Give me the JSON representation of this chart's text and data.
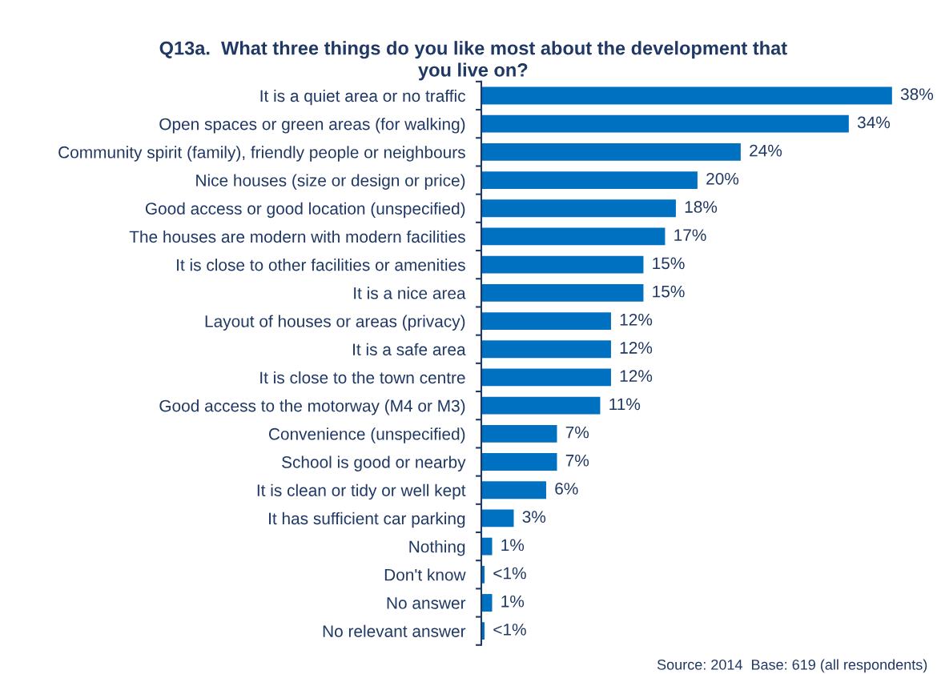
{
  "chart_data": {
    "type": "bar",
    "orientation": "horizontal",
    "title": "Q13a.  What three things do you like most about the development that\nyou live on?",
    "categories": [
      "It is a quiet area or no traffic",
      "Open spaces or green areas (for walking)",
      "Community spirit (family), friendly people or neighbours",
      "Nice houses (size or design or price)",
      "Good access or good location (unspecified)",
      "The houses are modern with modern facilities",
      "It is close to other facilities or amenities",
      "It is a nice area",
      "Layout of houses or areas (privacy)",
      "It is a safe area",
      "It is close to the town centre",
      "Good access to the motorway (M4 or M3)",
      "Convenience (unspecified)",
      "School is good or nearby",
      "It is clean or tidy or well kept",
      "It has sufficient car parking",
      "Nothing",
      "Don't know",
      "No answer",
      "No relevant answer"
    ],
    "values": [
      38,
      34,
      24,
      20,
      18,
      17,
      15,
      15,
      12,
      12,
      12,
      11,
      7,
      7,
      6,
      3,
      1,
      0.3,
      1,
      0.3
    ],
    "value_labels": [
      "38%",
      "34%",
      "24%",
      "20%",
      "18%",
      "17%",
      "15%",
      "15%",
      "12%",
      "12%",
      "12%",
      "11%",
      "7%",
      "7%",
      "6%",
      "3%",
      "1%",
      "<1%",
      "1%",
      "<1%"
    ],
    "color": "#0070c0",
    "annotations": [
      "Source: 2014  Base: 619 (all respondents)"
    ]
  }
}
